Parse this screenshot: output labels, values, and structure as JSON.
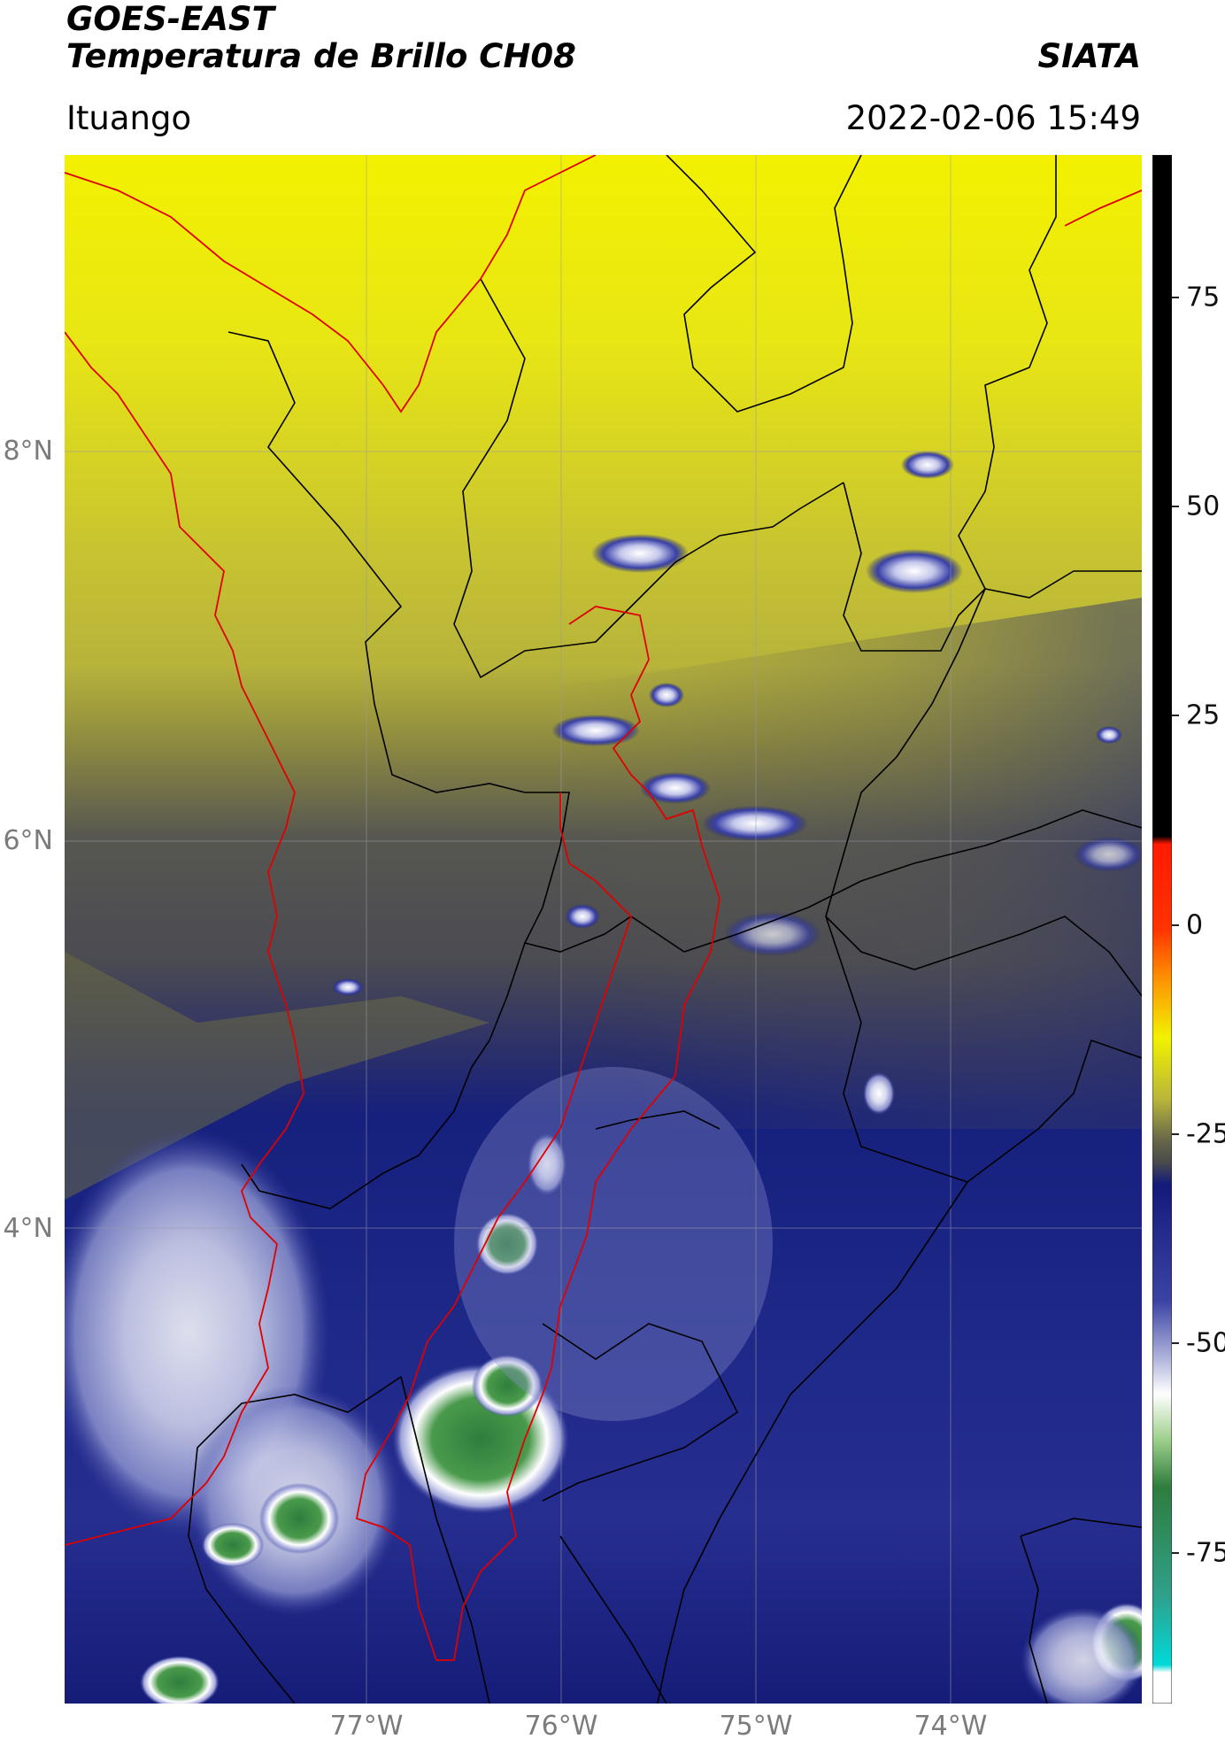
{
  "header": {
    "satellite": "GOES-EAST",
    "product": "Temperatura de Brillo CH08",
    "org": "SIATA",
    "location": "Ituango",
    "datetime": "2022-02-06 15:49"
  },
  "map": {
    "lat_labels": [
      "8°N",
      "6°N",
      "4°N"
    ],
    "lon_labels": [
      "77°W",
      "76°W",
      "75°W",
      "74°W"
    ],
    "border_colors": {
      "country": "#e00000",
      "department": "#000000"
    }
  },
  "colorbar": {
    "ticks": [
      "75",
      "50",
      "25",
      "0",
      "-25",
      "-50",
      "-75"
    ],
    "tick_values": [
      75,
      50,
      25,
      0,
      -25,
      -50,
      -75
    ],
    "range": [
      -93,
      92
    ],
    "colors": {
      "black": "#000000",
      "red": "#ff1a00",
      "orange": "#ff8c00",
      "yellow": "#f2f200",
      "olive": "#8a8a3a",
      "gray": "#4b4b4b",
      "navy": "#131a7a",
      "lavender": "#b9bde0",
      "white": "#ffffff",
      "green": "#2f7d3d",
      "cyan": "#00d9d9"
    }
  }
}
